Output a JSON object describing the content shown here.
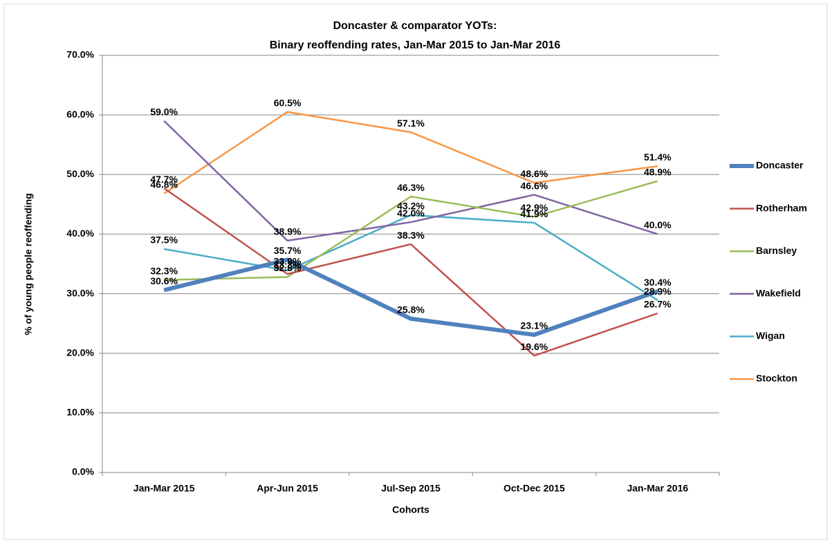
{
  "chart_data": {
    "type": "line",
    "title": [
      "Doncaster & comparator YOTs:",
      "Binary reoffending rates, Jan-Mar 2015 to Jan-Mar 2016"
    ],
    "x_label": "Cohorts",
    "y_label": "% of young people reoffending",
    "categories": [
      "Jan-Mar 2015",
      "Apr-Jun 2015",
      "Jul-Sep 2015",
      "Oct-Dec 2015",
      "Jan-Mar 2016"
    ],
    "series": [
      {
        "name": "Doncaster",
        "color": "#4f81bd",
        "values": [
          30.6,
          35.7,
          25.8,
          23.1,
          30.4
        ],
        "value_labels": [
          "30.6%",
          "35.7%",
          "25.8%",
          "23.1%",
          "30.4%"
        ]
      },
      {
        "name": "Rotherham",
        "color": "#c0504d",
        "values": [
          47.7,
          33.3,
          38.3,
          19.6,
          26.7
        ],
        "value_labels": [
          "47.7%",
          "33.3%",
          "38.3%",
          "19.6%",
          "26.7%"
        ]
      },
      {
        "name": "Barnsley",
        "color": "#9bbb59",
        "values": [
          32.3,
          32.8,
          46.3,
          42.9,
          48.9
        ],
        "value_labels": [
          "32.3%",
          "32.8%",
          "46.3%",
          "42.9%",
          "48.9%"
        ]
      },
      {
        "name": "Wakefield",
        "color": "#8064a2",
        "values": [
          59.0,
          38.9,
          42.0,
          46.6,
          40.0
        ],
        "value_labels": [
          "59.0%",
          "38.9%",
          "42.0%",
          "46.6%",
          "40.0%"
        ]
      },
      {
        "name": "Wigan",
        "color": "#4bacc6",
        "values": [
          37.5,
          33.9,
          43.2,
          41.9,
          28.9
        ],
        "value_labels": [
          "37.5%",
          "33.9%",
          "43.2%",
          "41.9%",
          "28.9%"
        ]
      },
      {
        "name": "Stockton",
        "color": "#f79646",
        "values": [
          46.8,
          60.5,
          57.1,
          48.6,
          51.4
        ],
        "value_labels": [
          "46.8%",
          "60.5%",
          "57.1%",
          "48.6%",
          "51.4%"
        ]
      }
    ],
    "ylim": [
      0,
      70
    ],
    "yticks": [
      {
        "value": 0,
        "label": "0.0%"
      },
      {
        "value": 10,
        "label": "10.0%"
      },
      {
        "value": 20,
        "label": "20.0%"
      },
      {
        "value": 30,
        "label": "30.0%"
      },
      {
        "value": 40,
        "label": "40.0%"
      },
      {
        "value": 50,
        "label": "50.0%"
      },
      {
        "value": 60,
        "label": "60.0%"
      },
      {
        "value": 70,
        "label": "70.0%"
      }
    ],
    "grid": true,
    "legend": "right"
  }
}
